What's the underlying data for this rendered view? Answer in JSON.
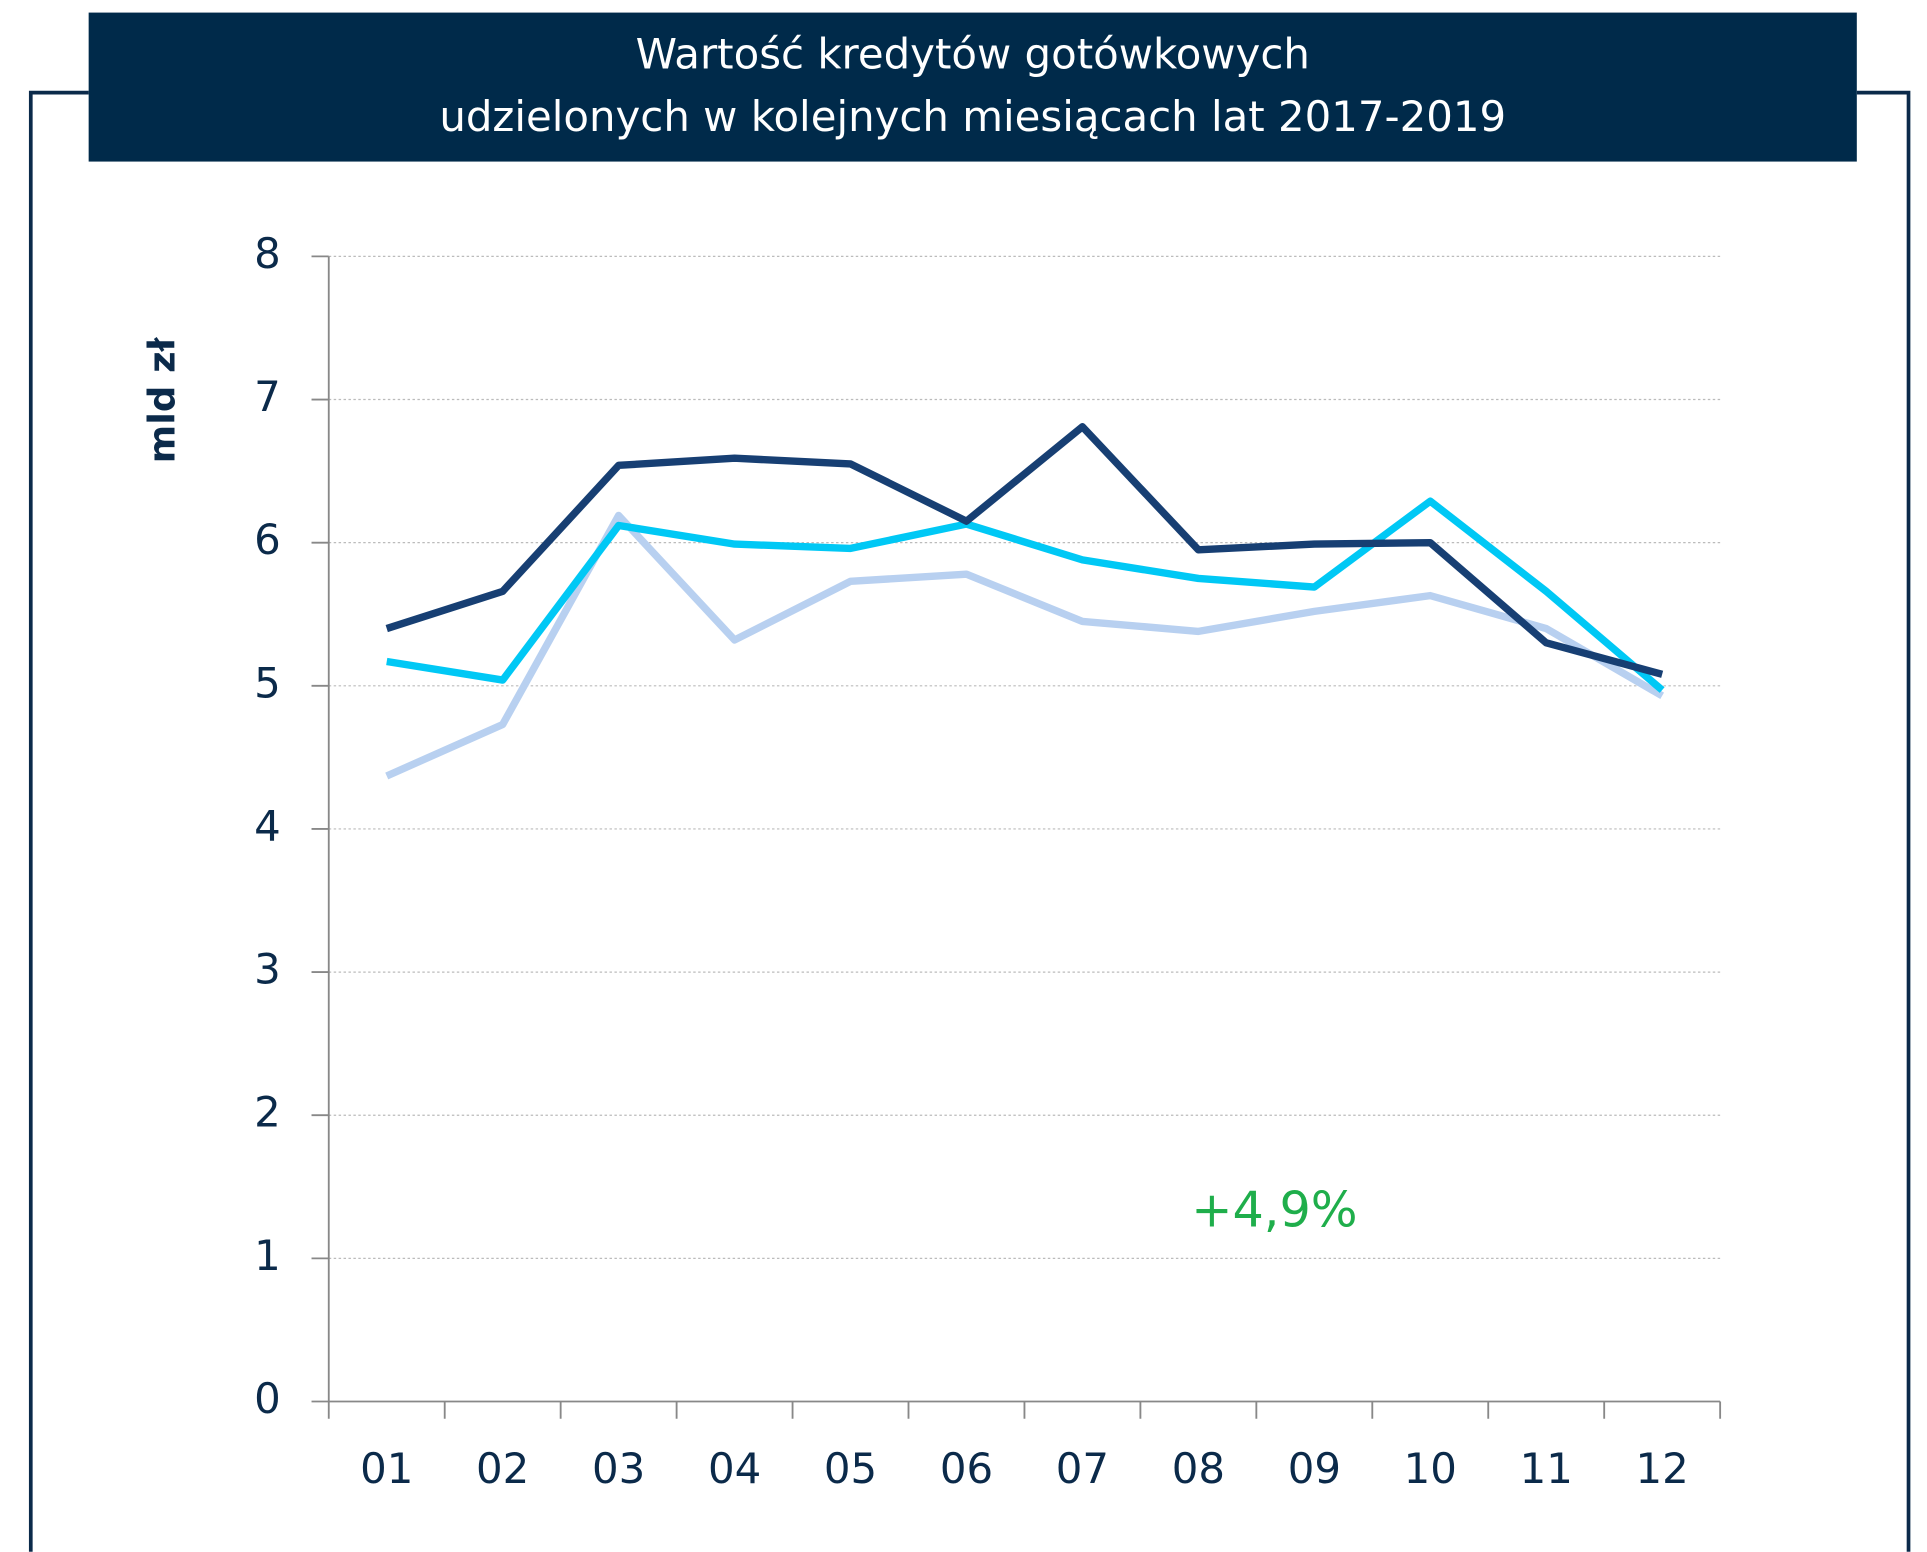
{
  "chart_data": {
    "type": "line",
    "title": [
      "Wartość kredytów gotówkowych",
      "udzielonych w kolejnych miesiącach lat 2017-2019"
    ],
    "y_label": "mld zł",
    "annotation": "+4,9%",
    "categories": [
      "01",
      "02",
      "03",
      "04",
      "05",
      "06",
      "07",
      "08",
      "09",
      "10",
      "11",
      "12"
    ],
    "series": [
      {
        "color": "#b8d0f0",
        "values": [
          4.37,
          4.73,
          6.19,
          5.32,
          5.73,
          5.78,
          5.45,
          5.38,
          5.52,
          5.63,
          5.4,
          4.93
        ]
      },
      {
        "color": "#00c8f5",
        "values": [
          5.17,
          5.04,
          6.12,
          5.99,
          5.96,
          6.13,
          5.88,
          5.75,
          5.69,
          6.29,
          5.66,
          4.97
        ]
      },
      {
        "color": "#173f73",
        "values": [
          5.4,
          5.66,
          6.54,
          6.59,
          6.55,
          6.15,
          6.81,
          5.95,
          5.99,
          6.0,
          5.3,
          5.08
        ]
      }
    ],
    "ylim": [
      0,
      8
    ],
    "yticks": [
      0,
      1,
      2,
      3,
      4,
      5,
      6,
      7,
      8
    ],
    "grid": true
  }
}
